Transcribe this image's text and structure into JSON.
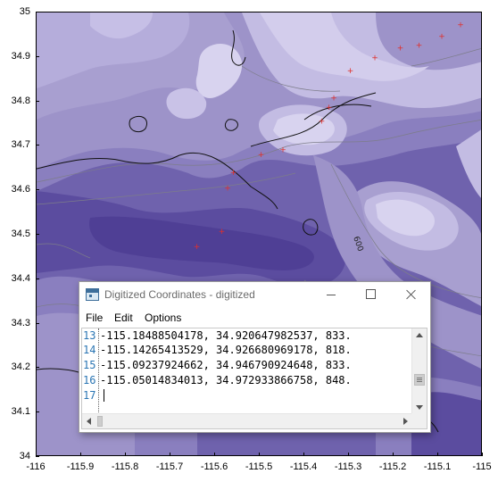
{
  "map": {
    "y_ticks": [
      "35",
      "34.9",
      "34.8",
      "34.7",
      "34.6",
      "34.5",
      "34.4",
      "34.3",
      "34.2",
      "34.1",
      "34"
    ],
    "x_ticks": [
      "-116",
      "-115.9",
      "-115.8",
      "-115.7",
      "-115.6",
      "-115.5",
      "-115.4",
      "-115.3",
      "-115.2",
      "-115.1",
      "-115"
    ],
    "contour_label": "600",
    "marker_color": "#e0302c",
    "markers": [
      {
        "lon": -115.641,
        "lat": 34.474
      },
      {
        "lon": -115.585,
        "lat": 34.508
      },
      {
        "lon": -115.572,
        "lat": 34.605
      },
      {
        "lon": -115.559,
        "lat": 34.641
      },
      {
        "lon": -115.497,
        "lat": 34.681
      },
      {
        "lon": -115.448,
        "lat": 34.692
      },
      {
        "lon": -115.361,
        "lat": 34.756
      },
      {
        "lon": -115.345,
        "lat": 34.787
      },
      {
        "lon": -115.334,
        "lat": 34.808
      },
      {
        "lon": -115.297,
        "lat": 34.869
      },
      {
        "lon": -115.242,
        "lat": 34.899
      },
      {
        "lon": -115.185,
        "lat": 34.921
      },
      {
        "lon": -115.143,
        "lat": 34.927
      },
      {
        "lon": -115.092,
        "lat": 34.947
      },
      {
        "lon": -115.05,
        "lat": 34.973
      }
    ]
  },
  "window": {
    "title": "Digitized Coordinates - digitized",
    "menu": [
      "File",
      "Edit",
      "Options"
    ],
    "lines": [
      {
        "num": "13",
        "text": "-115.18488504178, 34.920647982537, 833."
      },
      {
        "num": "14",
        "text": "-115.14265413529, 34.926680969178, 818."
      },
      {
        "num": "15",
        "text": "-115.09237924662, 34.946790924648, 833."
      },
      {
        "num": "16",
        "text": "-115.05014834013, 34.972933866758, 848."
      },
      {
        "num": "17",
        "text": ""
      }
    ]
  }
}
